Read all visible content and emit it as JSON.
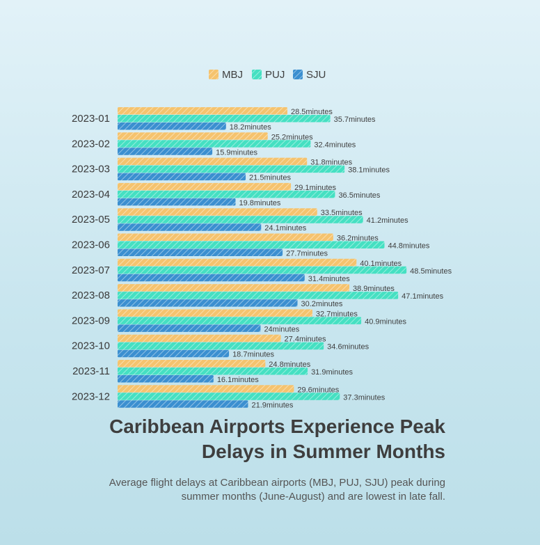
{
  "chart_data": {
    "type": "bar",
    "orientation": "horizontal",
    "title": "Caribbean Airports Experience Peak Delays in Summer Months",
    "subtitle": "Average flight delays at Caribbean airports (MBJ, PUJ, SJU) peak during summer months (June-August) and are lowest in late fall.",
    "value_suffix": "minutes",
    "legend_position": "top",
    "grid": false,
    "xlim": [
      0,
      55
    ],
    "categories": [
      "2023-01",
      "2023-02",
      "2023-03",
      "2023-04",
      "2023-05",
      "2023-06",
      "2023-07",
      "2023-08",
      "2023-09",
      "2023-10",
      "2023-11",
      "2023-12"
    ],
    "series": [
      {
        "name": "MBJ",
        "color": "#f5c36e",
        "values": [
          28.5,
          25.2,
          31.8,
          29.1,
          33.5,
          36.2,
          40.1,
          38.9,
          32.7,
          27.4,
          24.8,
          29.6
        ]
      },
      {
        "name": "PUJ",
        "color": "#45e0c2",
        "values": [
          35.7,
          32.4,
          38.1,
          36.5,
          41.2,
          44.8,
          48.5,
          47.1,
          40.9,
          34.6,
          31.9,
          37.3
        ]
      },
      {
        "name": "SJU",
        "color": "#3b8fd0",
        "values": [
          18.2,
          15.9,
          21.5,
          19.8,
          24.1,
          27.7,
          31.4,
          30.2,
          24,
          18.7,
          16.1,
          21.9
        ]
      }
    ]
  }
}
